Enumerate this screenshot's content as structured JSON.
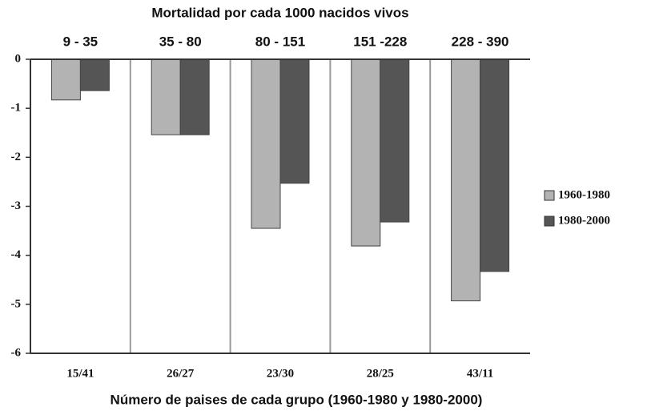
{
  "chart_data": {
    "type": "bar",
    "title": "Mortalidad por cada 1000 nacidos vivos",
    "x_label": "Número de paises de cada grupo (1960-1980 y 1980-2000)",
    "categories": [
      "9 - 35",
      "35 - 80",
      "80 - 151",
      "151 -228",
      "228 - 390"
    ],
    "group_counts": [
      "15/41",
      "26/27",
      "23/30",
      "28/25",
      "43/11"
    ],
    "series": [
      {
        "name": "1960-1980",
        "color": "#b3b3b3",
        "values": [
          -0.83,
          -1.54,
          -3.45,
          -3.81,
          -4.93
        ]
      },
      {
        "name": "1980-2000",
        "color": "#555555",
        "values": [
          -0.64,
          -1.54,
          -2.53,
          -3.32,
          -4.33
        ]
      }
    ],
    "ylim": [
      -6,
      0
    ],
    "yticks": [
      0,
      -1,
      -2,
      -3,
      -4,
      -5,
      -6
    ],
    "legend": "right"
  }
}
